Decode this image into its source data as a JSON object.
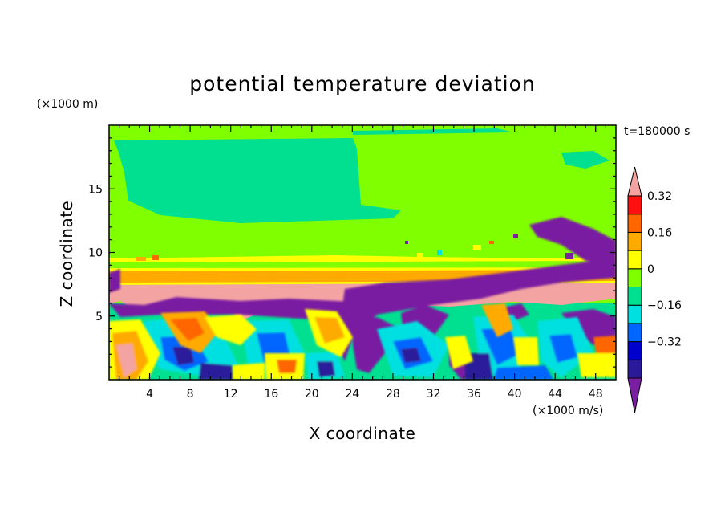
{
  "chart_data": {
    "type": "heatmap",
    "title": "potential temperature deviation",
    "xlabel": "X coordinate",
    "ylabel": "Z coordinate",
    "x_unit": "(×1000 m/s)",
    "y_unit": "(×1000 m)",
    "time_label": "t=180000 s",
    "xlim": [
      0,
      50
    ],
    "ylim": [
      0,
      20
    ],
    "x_ticks": [
      "4",
      "8",
      "12",
      "16",
      "20",
      "24",
      "28",
      "32",
      "36",
      "40",
      "44",
      "48"
    ],
    "y_ticks": [
      "5",
      "10",
      "15"
    ],
    "colorbar": {
      "levels": [
        -0.48,
        -0.4,
        -0.32,
        -0.24,
        -0.16,
        -0.08,
        0,
        0.08,
        0.16,
        0.24,
        0.32,
        0.4
      ],
      "labels": [
        "0.32",
        "0.16",
        "0",
        "−0.16",
        "−0.32"
      ],
      "colors": [
        "#7a1fa2",
        "#2a1a9a",
        "#0000cc",
        "#0066ff",
        "#00e0e0",
        "#00e090",
        "#80ff00",
        "#ffff00",
        "#ffaa00",
        "#ff6600",
        "#ff1010",
        "#f4a3a3"
      ]
    }
  }
}
